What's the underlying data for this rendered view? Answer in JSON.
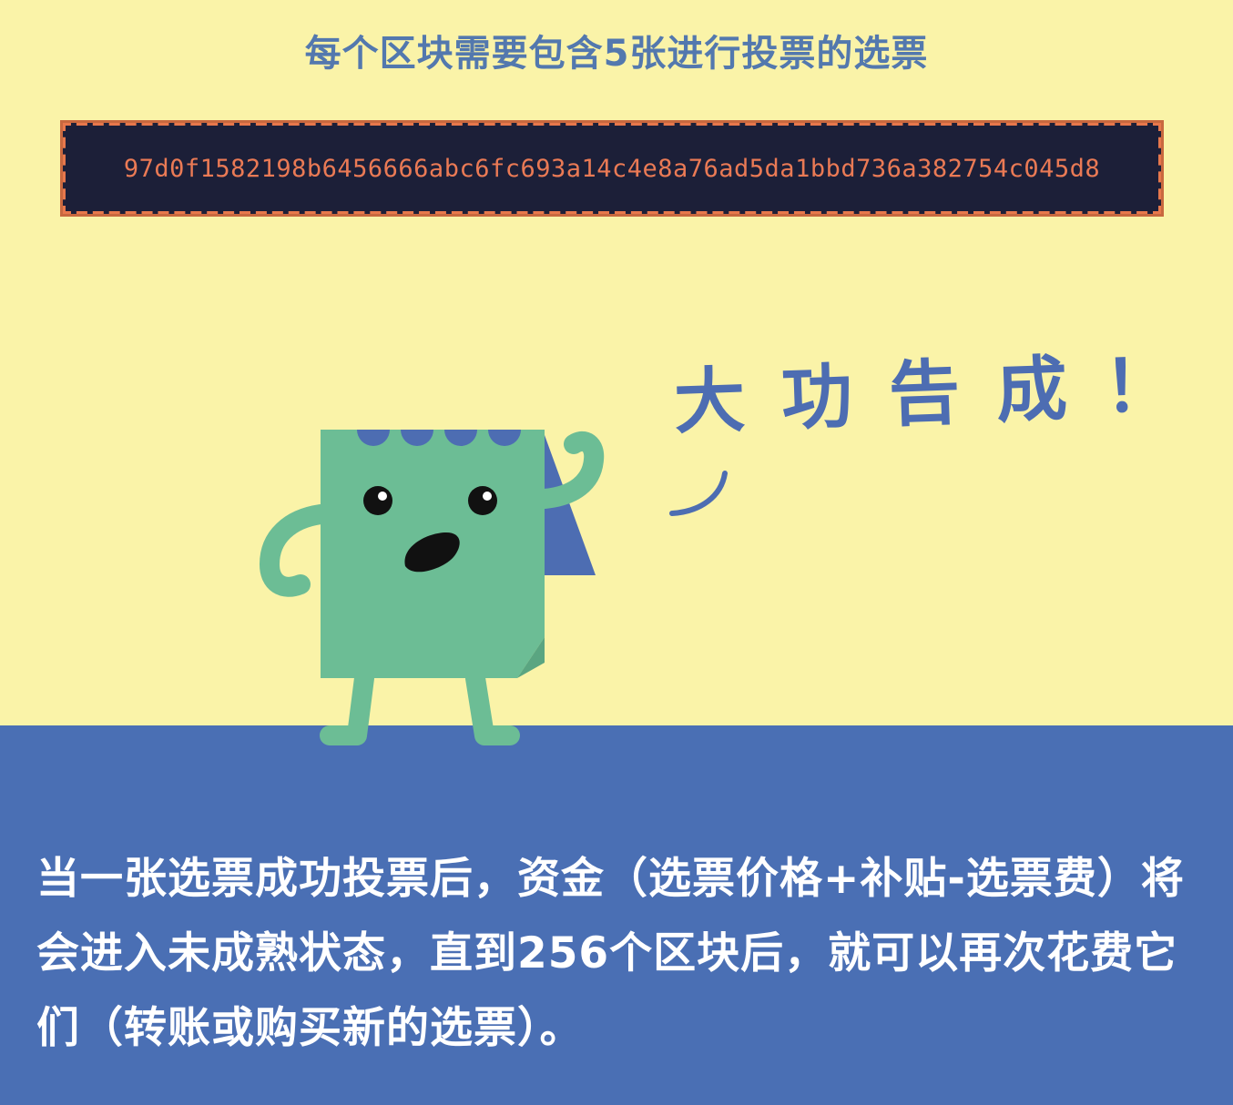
{
  "header": {
    "title": "每个区块需要包含5张进行投票的选票"
  },
  "hash": {
    "value": "97d0f1582198b6456666abc6fc693a14c4e8a76ad5da1bbd736a382754c045d8"
  },
  "speech_bubble": {
    "text": "大功告成！"
  },
  "description": {
    "text": "当一张选票成功投票后，资金（选票价格+补贴-选票费）将会进入未成熟状态，直到256个区块后，就可以再次花费它们（转账或购买新的选票）。"
  },
  "colors": {
    "background_top": "#FAF3A8",
    "background_bottom": "#4A6FB4",
    "title": "#5378AE",
    "hash_box": "#1C1F38",
    "hash_text": "#EA7A55",
    "mascot_body": "#6CBD95",
    "mascot_flag": "#4D6DB2"
  },
  "icons": {
    "mascot": "ticket-mascot-icon"
  }
}
